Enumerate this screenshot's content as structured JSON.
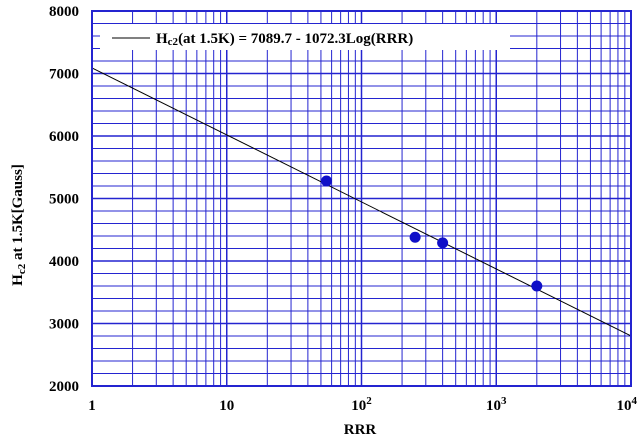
{
  "chart_data": {
    "type": "scatter",
    "title": "",
    "xlabel": "RRR",
    "ylabel": {
      "main": "H",
      "sub": "c2",
      "rest": " at 1.5K[Gauss]"
    },
    "xscale": "log",
    "xlim": [
      1,
      10000
    ],
    "ylim": [
      2000,
      8000
    ],
    "grid": true,
    "x_ticks": [
      {
        "value": 1,
        "base": "1",
        "exp": ""
      },
      {
        "value": 10,
        "base": "10",
        "exp": ""
      },
      {
        "value": 100,
        "base": "10",
        "exp": "2"
      },
      {
        "value": 1000,
        "base": "10",
        "exp": "3"
      },
      {
        "value": 10000,
        "base": "10",
        "exp": "4"
      }
    ],
    "y_ticks": [
      "2000",
      "3000",
      "4000",
      "5000",
      "6000",
      "7000",
      "8000"
    ],
    "legend": {
      "position": "top",
      "prefix": "H",
      "sub": "c2",
      "rest": "(at 1.5K) = 7089.7 - 1072.3Log(RRR)"
    },
    "series": [
      {
        "type": "scatter",
        "marker_color": "#1010c8",
        "points": [
          {
            "x": 55,
            "y": 5280
          },
          {
            "x": 250,
            "y": 4380
          },
          {
            "x": 400,
            "y": 4290
          },
          {
            "x": 2000,
            "y": 3600
          }
        ]
      },
      {
        "type": "line",
        "color": "#000000",
        "intercept": 7089.7,
        "slope": -1072.3
      }
    ],
    "colors": {
      "grid": "#2424d0",
      "frame": "#2424d0",
      "fit_line": "#000000",
      "markers": "#1010c8"
    }
  }
}
